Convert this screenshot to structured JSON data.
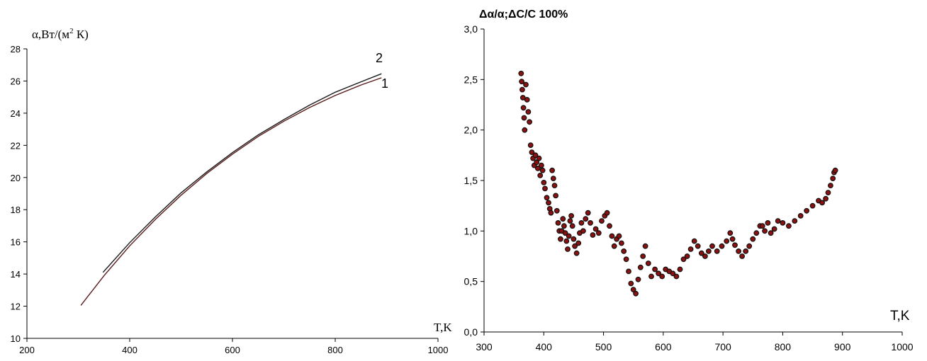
{
  "chart_data": [
    {
      "type": "line",
      "ylabel": "α,Вт/(м",
      "ylabel_sup": "2",
      "ylabel_suffix": " К)",
      "xlabel": "T,K",
      "xlim": [
        200,
        1000
      ],
      "ylim": [
        10,
        28
      ],
      "xticks": [
        "200",
        "400",
        "600",
        "800",
        "1000"
      ],
      "yticks": [
        "10",
        "12",
        "14",
        "16",
        "18",
        "20",
        "22",
        "24",
        "26",
        "28"
      ],
      "grid": false,
      "series": [
        {
          "name": "1",
          "color": "#5a1a1a",
          "x": [
            305,
            350,
            400,
            450,
            500,
            550,
            600,
            650,
            700,
            750,
            800,
            850,
            890
          ],
          "y": [
            12.05,
            13.9,
            15.75,
            17.4,
            18.9,
            20.25,
            21.45,
            22.55,
            23.5,
            24.35,
            25.1,
            25.75,
            26.2
          ]
        },
        {
          "name": "2",
          "color": "#1a1a1a",
          "x": [
            348,
            400,
            450,
            500,
            550,
            600,
            650,
            700,
            750,
            800,
            850,
            890
          ],
          "y": [
            14.1,
            15.95,
            17.55,
            19.05,
            20.35,
            21.55,
            22.65,
            23.6,
            24.5,
            25.3,
            25.95,
            26.45
          ]
        }
      ]
    },
    {
      "type": "scatter",
      "title": "Δα/α;ΔC/C 100%",
      "xlabel": "T,K",
      "xlim": [
        300,
        1000
      ],
      "ylim": [
        0,
        3
      ],
      "xticks": [
        "300",
        "400",
        "500",
        "600",
        "700",
        "800",
        "900",
        "1000"
      ],
      "yticks": [
        "0,0",
        "0,5",
        "1,0",
        "1,5",
        "2,0",
        "2,5",
        "3,0"
      ],
      "grid": false,
      "point_color": "#8b1010",
      "point_edge": "#111111",
      "x": [
        362,
        363,
        364,
        365,
        366,
        367,
        368,
        370,
        372,
        374,
        376,
        378,
        380,
        382,
        384,
        386,
        388,
        390,
        392,
        394,
        396,
        398,
        400,
        402,
        405,
        408,
        410,
        412,
        414,
        416,
        418,
        420,
        422,
        424,
        426,
        428,
        430,
        432,
        434,
        436,
        438,
        440,
        442,
        444,
        446,
        448,
        450,
        452,
        455,
        458,
        460,
        463,
        466,
        470,
        474,
        478,
        482,
        487,
        492,
        497,
        502,
        506,
        510,
        514,
        518,
        522,
        526,
        530,
        534,
        538,
        542,
        546,
        550,
        554,
        558,
        562,
        566,
        570,
        575,
        580,
        586,
        592,
        598,
        604,
        610,
        616,
        622,
        628,
        634,
        640,
        646,
        652,
        658,
        664,
        670,
        676,
        682,
        690,
        698,
        706,
        712,
        716,
        720,
        726,
        732,
        738,
        744,
        750,
        756,
        762,
        766,
        770,
        775,
        780,
        786,
        792,
        800,
        810,
        820,
        830,
        840,
        850,
        860,
        866,
        872,
        876,
        880,
        884,
        886,
        888
      ],
      "y": [
        2.56,
        2.48,
        2.4,
        2.32,
        2.22,
        2.12,
        2.0,
        2.45,
        2.3,
        2.18,
        2.08,
        1.85,
        1.78,
        1.72,
        1.65,
        1.75,
        1.68,
        1.62,
        1.72,
        1.55,
        1.65,
        1.6,
        1.48,
        1.42,
        1.33,
        1.28,
        1.22,
        1.18,
        1.6,
        1.52,
        1.45,
        1.35,
        1.2,
        1.08,
        1.0,
        0.92,
        1.0,
        1.12,
        1.05,
        0.98,
        0.9,
        0.82,
        0.95,
        1.1,
        1.15,
        1.05,
        0.92,
        0.85,
        0.78,
        0.88,
        0.98,
        1.08,
        1.0,
        1.12,
        1.18,
        1.08,
        0.96,
        1.02,
        0.98,
        1.1,
        1.15,
        1.18,
        1.05,
        0.95,
        0.85,
        0.92,
        0.95,
        0.88,
        0.8,
        0.72,
        0.6,
        0.48,
        0.42,
        0.38,
        0.52,
        0.64,
        0.75,
        0.85,
        0.68,
        0.55,
        0.62,
        0.58,
        0.55,
        0.62,
        0.6,
        0.58,
        0.55,
        0.62,
        0.72,
        0.75,
        0.82,
        0.9,
        0.85,
        0.78,
        0.75,
        0.8,
        0.85,
        0.8,
        0.85,
        0.9,
        0.98,
        0.92,
        0.86,
        0.8,
        0.75,
        0.8,
        0.85,
        0.92,
        0.98,
        1.05,
        1.05,
        1.0,
        1.08,
        0.98,
        1.02,
        1.1,
        1.08,
        1.05,
        1.1,
        1.15,
        1.2,
        1.25,
        1.3,
        1.28,
        1.32,
        1.38,
        1.45,
        1.52,
        1.58,
        1.6
      ]
    }
  ],
  "annotations": {
    "curve1_label": "1",
    "curve2_label": "2"
  }
}
